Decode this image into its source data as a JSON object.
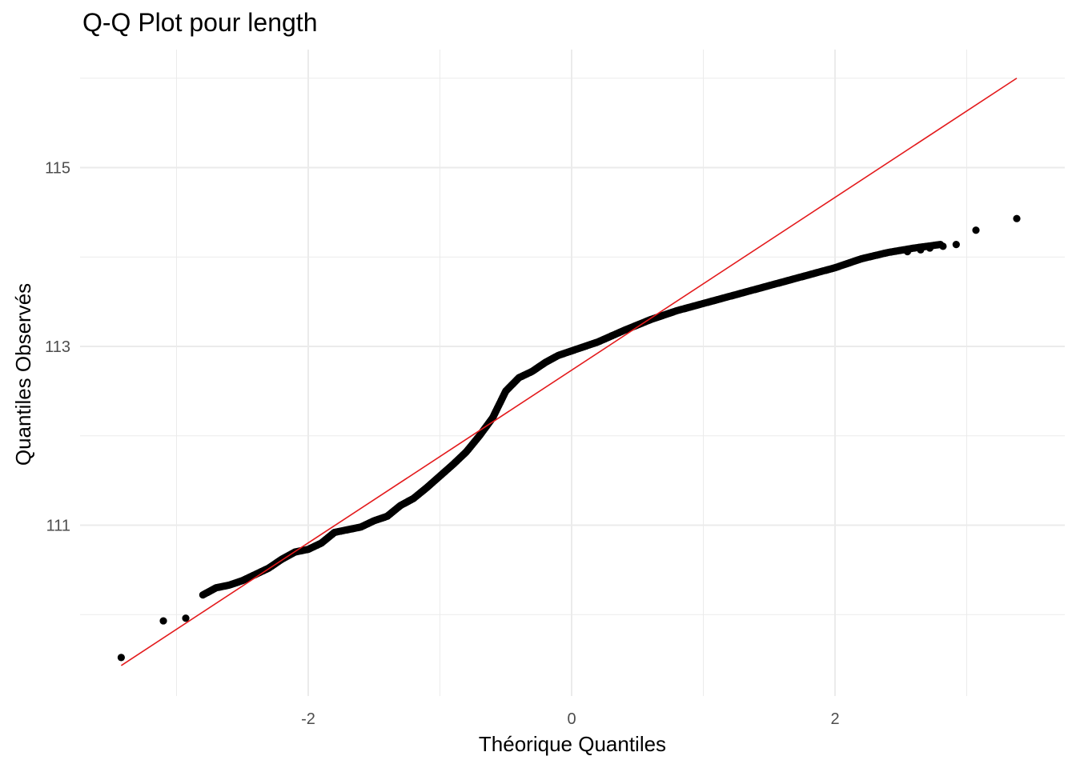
{
  "chart_data": {
    "type": "scatter",
    "title": "Q-Q Plot pour length",
    "xlabel": "Théorique Quantiles",
    "ylabel": "Quantiles Observés",
    "xlim": [
      -3.5,
      3.75
    ],
    "ylim": [
      109.2,
      116.3
    ],
    "x_ticks": [
      -2,
      0,
      2
    ],
    "x_tick_labels": [
      "-2",
      "0",
      "2"
    ],
    "y_ticks": [
      111,
      113,
      115
    ],
    "y_tick_labels": [
      "111",
      "113",
      "115"
    ],
    "grid": true,
    "colors": {
      "points": "#000000",
      "line": "#e31a1c",
      "grid": "#ebebeb"
    },
    "reference_line": {
      "x": [
        -3.42,
        3.38
      ],
      "y": [
        109.43,
        116.0
      ]
    },
    "curve": [
      [
        -3.4,
        109.52
      ],
      [
        -3.1,
        109.93
      ],
      [
        -2.9,
        109.97
      ],
      [
        -2.8,
        110.22
      ],
      [
        -2.7,
        110.3
      ],
      [
        -2.6,
        110.33
      ],
      [
        -2.5,
        110.38
      ],
      [
        -2.4,
        110.45
      ],
      [
        -2.3,
        110.52
      ],
      [
        -2.2,
        110.62
      ],
      [
        -2.1,
        110.7
      ],
      [
        -2.0,
        110.73
      ],
      [
        -1.9,
        110.8
      ],
      [
        -1.8,
        110.92
      ],
      [
        -1.6,
        110.98
      ],
      [
        -1.5,
        111.05
      ],
      [
        -1.4,
        111.1
      ],
      [
        -1.3,
        111.22
      ],
      [
        -1.2,
        111.3
      ],
      [
        -1.1,
        111.42
      ],
      [
        -1.0,
        111.55
      ],
      [
        -0.9,
        111.68
      ],
      [
        -0.8,
        111.82
      ],
      [
        -0.7,
        112.0
      ],
      [
        -0.6,
        112.2
      ],
      [
        -0.5,
        112.5
      ],
      [
        -0.4,
        112.65
      ],
      [
        -0.3,
        112.72
      ],
      [
        -0.2,
        112.82
      ],
      [
        -0.1,
        112.9
      ],
      [
        0.0,
        112.95
      ],
      [
        0.2,
        113.05
      ],
      [
        0.4,
        113.18
      ],
      [
        0.6,
        113.3
      ],
      [
        0.8,
        113.4
      ],
      [
        1.0,
        113.48
      ],
      [
        1.2,
        113.56
      ],
      [
        1.4,
        113.64
      ],
      [
        1.6,
        113.72
      ],
      [
        1.8,
        113.8
      ],
      [
        2.0,
        113.88
      ],
      [
        2.2,
        113.98
      ],
      [
        2.4,
        114.05
      ],
      [
        2.6,
        114.1
      ],
      [
        2.8,
        114.14
      ]
    ],
    "outliers": [
      [
        -3.42,
        109.52
      ],
      [
        -3.1,
        109.93
      ],
      [
        -2.93,
        109.96
      ],
      [
        3.07,
        114.3
      ],
      [
        3.38,
        114.43
      ]
    ]
  }
}
